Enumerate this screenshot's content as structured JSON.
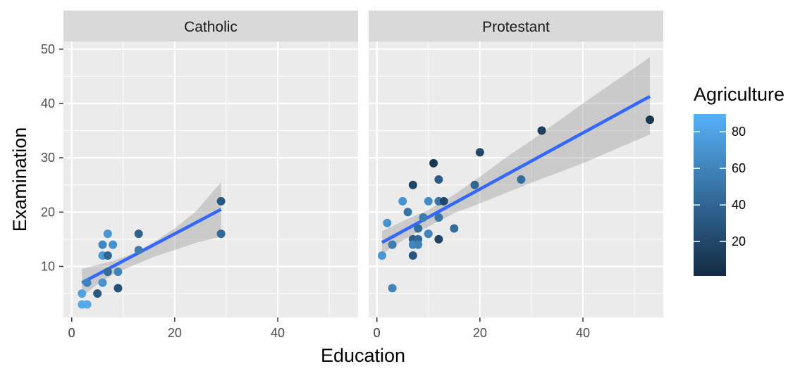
{
  "chart_data": {
    "type": "scatter",
    "xlabel": "Education",
    "ylabel": "Examination",
    "xlim": [
      -1.6,
      55.6
    ],
    "ylim": [
      0.6,
      51.4
    ],
    "x_ticks": [
      0,
      20,
      40
    ],
    "y_ticks": [
      10,
      20,
      30,
      40,
      50
    ],
    "grid": true,
    "colorbar": {
      "title": "Agriculture",
      "min": 1.2,
      "max": 89.7,
      "ticks": [
        20,
        40,
        60,
        80
      ],
      "low_color": "#132B43",
      "high_color": "#56B1F7",
      "placement": "right"
    },
    "smooth_color": "#3366FF",
    "ribbon_color": "#999999",
    "panels": [
      {
        "name": "Catholic",
        "points": [
          {
            "x": 2,
            "y": 3,
            "c": 85
          },
          {
            "x": 3,
            "y": 3,
            "c": 86
          },
          {
            "x": 2,
            "y": 5,
            "c": 80
          },
          {
            "x": 5,
            "y": 5,
            "c": 30
          },
          {
            "x": 9,
            "y": 6,
            "c": 25
          },
          {
            "x": 3,
            "y": 7,
            "c": 60
          },
          {
            "x": 6,
            "y": 7,
            "c": 70
          },
          {
            "x": 7,
            "y": 9,
            "c": 45
          },
          {
            "x": 9,
            "y": 9,
            "c": 60
          },
          {
            "x": 6,
            "y": 12,
            "c": 75
          },
          {
            "x": 7,
            "y": 12,
            "c": 40
          },
          {
            "x": 13,
            "y": 13,
            "c": 55
          },
          {
            "x": 6,
            "y": 14,
            "c": 62
          },
          {
            "x": 8,
            "y": 14,
            "c": 68
          },
          {
            "x": 7,
            "y": 16,
            "c": 72
          },
          {
            "x": 13,
            "y": 16,
            "c": 38
          },
          {
            "x": 29,
            "y": 16,
            "c": 42
          },
          {
            "x": 29,
            "y": 22,
            "c": 30
          }
        ],
        "fit": {
          "x_start": 2,
          "x_end": 29,
          "y_start": 7.0,
          "y_end": 20.5
        },
        "ribbon_upper": [
          [
            2,
            9.5
          ],
          [
            5,
            10.3
          ],
          [
            8,
            11.0
          ],
          [
            12,
            12.4
          ],
          [
            16,
            14.5
          ],
          [
            20,
            17.0
          ],
          [
            24,
            20.0
          ],
          [
            29,
            25.5
          ]
        ],
        "ribbon_lower": [
          [
            2,
            4.5
          ],
          [
            5,
            6.7
          ],
          [
            8,
            8.5
          ],
          [
            12,
            10.2
          ],
          [
            16,
            11.8
          ],
          [
            20,
            13.0
          ],
          [
            24,
            14.3
          ],
          [
            29,
            15.5
          ]
        ]
      },
      {
        "name": "Protestant",
        "points": [
          {
            "x": 1,
            "y": 12,
            "c": 72
          },
          {
            "x": 2,
            "y": 18,
            "c": 70
          },
          {
            "x": 3,
            "y": 14,
            "c": 55
          },
          {
            "x": 3,
            "y": 6,
            "c": 60
          },
          {
            "x": 5,
            "y": 22,
            "c": 70
          },
          {
            "x": 6,
            "y": 20,
            "c": 50
          },
          {
            "x": 7,
            "y": 25,
            "c": 20
          },
          {
            "x": 7,
            "y": 15,
            "c": 35
          },
          {
            "x": 7,
            "y": 14,
            "c": 62
          },
          {
            "x": 7,
            "y": 12,
            "c": 30
          },
          {
            "x": 8,
            "y": 17,
            "c": 45
          },
          {
            "x": 8,
            "y": 15,
            "c": 40
          },
          {
            "x": 8,
            "y": 14,
            "c": 58
          },
          {
            "x": 9,
            "y": 19,
            "c": 55
          },
          {
            "x": 10,
            "y": 22,
            "c": 66
          },
          {
            "x": 10,
            "y": 16,
            "c": 60
          },
          {
            "x": 11,
            "y": 29,
            "c": 10
          },
          {
            "x": 12,
            "y": 26,
            "c": 35
          },
          {
            "x": 12,
            "y": 22,
            "c": 50
          },
          {
            "x": 12,
            "y": 19,
            "c": 50
          },
          {
            "x": 12,
            "y": 15,
            "c": 18
          },
          {
            "x": 13,
            "y": 22,
            "c": 20
          },
          {
            "x": 15,
            "y": 17,
            "c": 45
          },
          {
            "x": 19,
            "y": 25,
            "c": 40
          },
          {
            "x": 20,
            "y": 31,
            "c": 20
          },
          {
            "x": 28,
            "y": 26,
            "c": 45
          },
          {
            "x": 32,
            "y": 35,
            "c": 15
          },
          {
            "x": 53,
            "y": 37,
            "c": 8
          }
        ],
        "fit": {
          "x_start": 1,
          "x_end": 53,
          "y_start": 14.4,
          "y_end": 41.3
        },
        "ribbon_upper": [
          [
            1,
            16.5
          ],
          [
            5,
            18.3
          ],
          [
            10,
            20.4
          ],
          [
            15,
            23.2
          ],
          [
            20,
            26.5
          ],
          [
            25,
            30.0
          ],
          [
            30,
            33.2
          ],
          [
            40,
            40.0
          ],
          [
            53,
            48.5
          ]
        ],
        "ribbon_lower": [
          [
            1,
            12.3
          ],
          [
            5,
            14.8
          ],
          [
            10,
            17.3
          ],
          [
            15,
            19.8
          ],
          [
            20,
            21.6
          ],
          [
            25,
            23.5
          ],
          [
            30,
            25.4
          ],
          [
            40,
            29.0
          ],
          [
            53,
            34.3
          ]
        ]
      }
    ]
  }
}
